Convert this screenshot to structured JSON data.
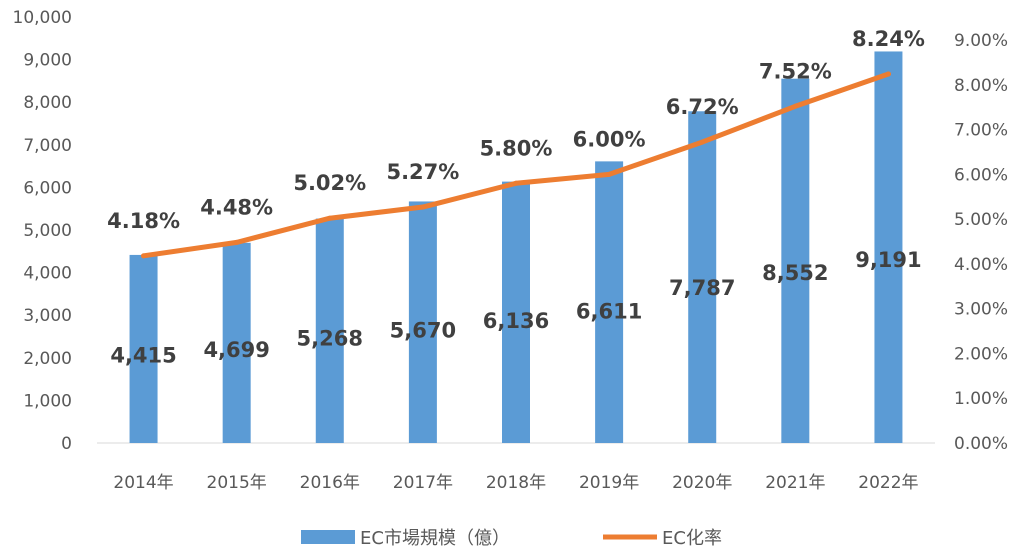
{
  "chart_data": {
    "type": "bar",
    "categories": [
      "2014年",
      "2015年",
      "2016年",
      "2017年",
      "2018年",
      "2019年",
      "2020年",
      "2021年",
      "2022年"
    ],
    "series": [
      {
        "name": "EC市場規模（億）",
        "type": "bar",
        "axis": "left",
        "values": [
          4415,
          4699,
          5268,
          5670,
          6136,
          6611,
          7787,
          8552,
          9191
        ],
        "labels": [
          "4,415",
          "4,699",
          "5,268",
          "5,670",
          "6,136",
          "6,611",
          "7,787",
          "8,552",
          "9,191"
        ],
        "color": "#5b9bd5"
      },
      {
        "name": "EC化率",
        "type": "line",
        "axis": "right",
        "values": [
          4.18,
          4.48,
          5.02,
          5.27,
          5.8,
          6.0,
          6.72,
          7.52,
          8.24
        ],
        "labels": [
          "4.18%",
          "4.48%",
          "5.02%",
          "5.27%",
          "5.80%",
          "6.00%",
          "6.72%",
          "7.52%",
          "8.24%"
        ],
        "color": "#ed7d31"
      }
    ],
    "y_left": {
      "min": 0,
      "max": 10000,
      "ticks": [
        "0",
        "1,000",
        "2,000",
        "3,000",
        "4,000",
        "5,000",
        "6,000",
        "7,000",
        "8,000",
        "9,000",
        "10,000"
      ]
    },
    "y_right": {
      "min": 0,
      "max": 9,
      "ticks": [
        "0.00%",
        "1.00%",
        "2.00%",
        "3.00%",
        "4.00%",
        "5.00%",
        "6.00%",
        "7.00%",
        "8.00%",
        "9.00%"
      ]
    },
    "grid": false,
    "legend_position": "bottom"
  }
}
